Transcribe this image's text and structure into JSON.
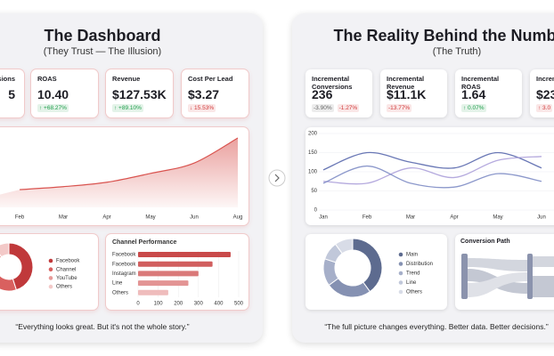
{
  "left": {
    "title": "The Dashboard",
    "subtitle": "(They Trust — The Illusion)",
    "kpis": [
      {
        "label": "Conversions",
        "value": "5",
        "changes": []
      },
      {
        "label": "ROAS",
        "value": "10.40",
        "changes": [
          {
            "text": "↑ +68.27%",
            "color": "#1e9e4a"
          }
        ]
      },
      {
        "label": "Revenue",
        "value": "$127.53K",
        "changes": [
          {
            "text": "↑ +89.10%",
            "color": "#1e9e4a"
          }
        ]
      },
      {
        "label": "Cost Per Lead",
        "value": "$3.27",
        "changes": [
          {
            "text": "↓ 15.53%",
            "color": "#d23b3b"
          }
        ]
      }
    ],
    "area_chart": {
      "type": "area",
      "categories": [
        "Feb",
        "Mar",
        "Apr",
        "May",
        "Jun",
        "Aug"
      ],
      "values": [
        24,
        28,
        34,
        46,
        60,
        94
      ],
      "ylim": [
        0,
        100
      ],
      "color": "#d9534f"
    },
    "donut": {
      "type": "pie",
      "labels": [
        "Facebook",
        "Channel",
        "YouTube",
        "Others"
      ],
      "values": [
        45,
        25,
        20,
        10
      ],
      "colors": [
        "#c0393b",
        "#d9605f",
        "#e89a98",
        "#f3c9c8"
      ]
    },
    "bar_chart": {
      "type": "bar",
      "title": "Channel Performance",
      "categories": [
        "Facebook",
        "Facebook",
        "Instagram",
        "Line",
        "Others"
      ],
      "values": [
        460,
        370,
        300,
        250,
        150
      ],
      "xlim": [
        0,
        500
      ],
      "xticks": [
        0,
        100,
        200,
        300,
        400,
        500
      ],
      "colors": [
        "#c94a4a",
        "#d15f5f",
        "#da7979",
        "#e39494",
        "#efbcbc"
      ]
    },
    "quote": "“Everything looks great. But it's not the whole story.”"
  },
  "right": {
    "title": "The Reality Behind the Numbers",
    "subtitle": "(The Truth)",
    "kpis": [
      {
        "label": "Incremental Conversions",
        "value": "236",
        "changes": [
          {
            "text": "-3.90%",
            "color": "#666666"
          },
          {
            "text": "-1.27%",
            "color": "#d23b3b"
          }
        ]
      },
      {
        "label": "Incremental Revenue",
        "value": "$11.1K",
        "changes": [
          {
            "text": "-13.77%",
            "color": "#d23b3b"
          }
        ]
      },
      {
        "label": "Incremental ROAS",
        "value": "1.64",
        "changes": [
          {
            "text": "↑ 0.07%",
            "color": "#1e9e4a"
          }
        ]
      },
      {
        "label": "Incremental",
        "value": "$23",
        "changes": [
          {
            "text": "↑ 3.0",
            "color": "#d23b3b"
          }
        ]
      }
    ],
    "line_chart": {
      "type": "line",
      "categories": [
        "Jan",
        "Feb",
        "Mar",
        "Apr",
        "May",
        "Jun"
      ],
      "ylim": [
        0,
        200
      ],
      "yticks": [
        0,
        50,
        100,
        150,
        200
      ],
      "series": [
        {
          "color": "#4f5fa8",
          "values": [
            105,
            150,
            125,
            110,
            150,
            110
          ]
        },
        {
          "color": "#a89bd8",
          "values": [
            75,
            70,
            110,
            85,
            130,
            140
          ]
        },
        {
          "color": "#7886c2",
          "values": [
            70,
            115,
            70,
            60,
            95,
            75
          ]
        }
      ]
    },
    "donut": {
      "type": "pie",
      "labels": [
        "Main",
        "Distribution",
        "Trend",
        "Line",
        "Others"
      ],
      "values": [
        40,
        25,
        15,
        10,
        10
      ],
      "colors": [
        "#5d6b8f",
        "#8591b2",
        "#a6afc9",
        "#c1c8da",
        "#d8dce7"
      ]
    },
    "sankey_title": "Conversion Path",
    "quote": "“The full picture changes everything. Better data. Better decisions.”"
  }
}
